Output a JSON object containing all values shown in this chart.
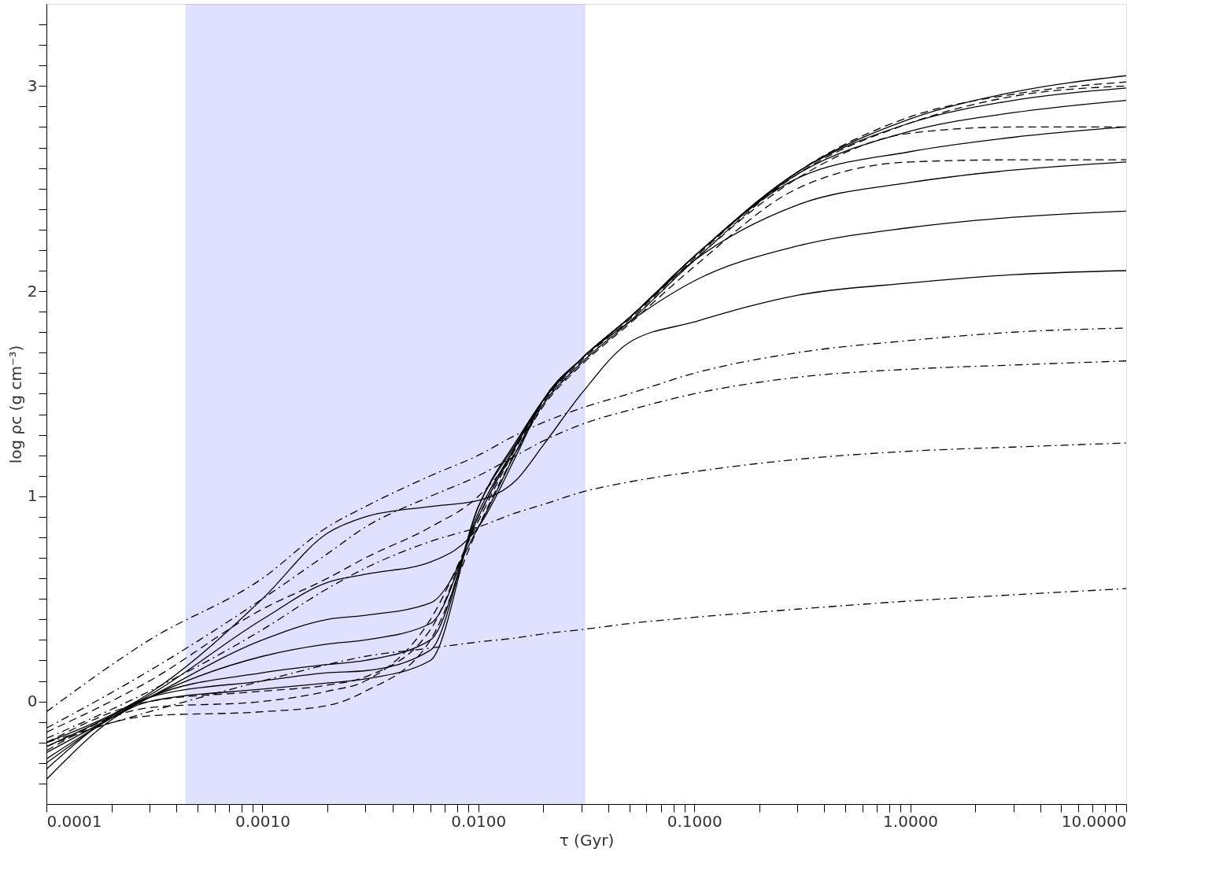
{
  "chart_data": {
    "type": "line",
    "xlabel": "τ (Gyr)",
    "ylabel": "log ρc (g cm⁻³)",
    "log": "x",
    "grid": false,
    "marker": "none",
    "x": [
      0.0001,
      0.0003,
      0.001,
      0.002,
      0.003,
      0.006,
      0.01,
      0.015,
      0.02,
      0.03,
      0.05,
      0.1,
      0.3,
      1,
      3,
      10
    ],
    "xlim": [
      0.0001,
      10
    ],
    "ylim": [
      -0.5,
      3.4
    ],
    "xticks": [
      {
        "value": 0.0001,
        "label": "0.0001"
      },
      {
        "value": 0.0002,
        "label": null
      },
      {
        "value": 0.0003,
        "label": null
      },
      {
        "value": 0.0004,
        "label": null
      },
      {
        "value": 0.0005,
        "label": null
      },
      {
        "value": 0.0006,
        "label": null
      },
      {
        "value": 0.0007,
        "label": null
      },
      {
        "value": 0.0008,
        "label": null
      },
      {
        "value": 0.0009,
        "label": null
      },
      {
        "value": 0.001,
        "label": "0.0010"
      },
      {
        "value": 0.002,
        "label": null
      },
      {
        "value": 0.003,
        "label": null
      },
      {
        "value": 0.004,
        "label": null
      },
      {
        "value": 0.005,
        "label": null
      },
      {
        "value": 0.006,
        "label": null
      },
      {
        "value": 0.007,
        "label": null
      },
      {
        "value": 0.008,
        "label": null
      },
      {
        "value": 0.009,
        "label": null
      },
      {
        "value": 0.01,
        "label": "0.0100"
      },
      {
        "value": 0.02,
        "label": null
      },
      {
        "value": 0.03,
        "label": null
      },
      {
        "value": 0.04,
        "label": null
      },
      {
        "value": 0.05,
        "label": null
      },
      {
        "value": 0.06,
        "label": null
      },
      {
        "value": 0.07,
        "label": null
      },
      {
        "value": 0.08,
        "label": null
      },
      {
        "value": 0.09,
        "label": null
      },
      {
        "value": 0.1,
        "label": "0.1000"
      },
      {
        "value": 0.2,
        "label": null
      },
      {
        "value": 0.3,
        "label": null
      },
      {
        "value": 0.4,
        "label": null
      },
      {
        "value": 0.5,
        "label": null
      },
      {
        "value": 0.6,
        "label": null
      },
      {
        "value": 0.7,
        "label": null
      },
      {
        "value": 0.8,
        "label": null
      },
      {
        "value": 0.9,
        "label": null
      },
      {
        "value": 1,
        "label": "1.0000"
      },
      {
        "value": 2,
        "label": null
      },
      {
        "value": 3,
        "label": null
      },
      {
        "value": 4,
        "label": null
      },
      {
        "value": 5,
        "label": null
      },
      {
        "value": 6,
        "label": null
      },
      {
        "value": 7,
        "label": null
      },
      {
        "value": 8,
        "label": null
      },
      {
        "value": 9,
        "label": null
      },
      {
        "value": 10,
        "label": "10.0000"
      }
    ],
    "yticks": [
      {
        "value": -0.4,
        "label": null
      },
      {
        "value": -0.3,
        "label": null
      },
      {
        "value": -0.2,
        "label": null
      },
      {
        "value": -0.1,
        "label": null
      },
      0,
      {
        "value": 0.1,
        "label": null
      },
      {
        "value": 0.2,
        "label": null
      },
      {
        "value": 0.3,
        "label": null
      },
      {
        "value": 0.4,
        "label": null
      },
      {
        "value": 0.5,
        "label": null
      },
      {
        "value": 0.6,
        "label": null
      },
      {
        "value": 0.7,
        "label": null
      },
      {
        "value": 0.8,
        "label": null
      },
      {
        "value": 0.9,
        "label": null
      },
      1,
      {
        "value": 1.1,
        "label": null
      },
      {
        "value": 1.2,
        "label": null
      },
      {
        "value": 1.3,
        "label": null
      },
      {
        "value": 1.4,
        "label": null
      },
      {
        "value": 1.5,
        "label": null
      },
      {
        "value": 1.6,
        "label": null
      },
      {
        "value": 1.7,
        "label": null
      },
      {
        "value": 1.8,
        "label": null
      },
      {
        "value": 1.9,
        "label": null
      },
      2,
      {
        "value": 2.1,
        "label": null
      },
      {
        "value": 2.2,
        "label": null
      },
      {
        "value": 2.3,
        "label": null
      },
      {
        "value": 2.4,
        "label": null
      },
      {
        "value": 2.5,
        "label": null
      },
      {
        "value": 2.6,
        "label": null
      },
      {
        "value": 2.7,
        "label": null
      },
      {
        "value": 2.8,
        "label": null
      },
      {
        "value": 2.9,
        "label": null
      },
      3,
      {
        "value": 3.1,
        "label": null
      },
      {
        "value": 3.2,
        "label": null
      },
      {
        "value": 3.3,
        "label": null
      }
    ],
    "bands": [
      {
        "axis": "x",
        "from": 0.00044,
        "to": 0.0313,
        "color": "#0000ff"
      }
    ],
    "series": [
      {
        "color": "#000000",
        "line_style": "solid",
        "values": [
          -0.38,
          0.0,
          0.06,
          0.09,
          0.11,
          0.2,
          0.95,
          1.27,
          1.47,
          1.67,
          1.87,
          2.17,
          2.58,
          2.84,
          2.97,
          3.05
        ]
      },
      {
        "color": "#000000",
        "line_style": "solid",
        "values": [
          -0.33,
          0.02,
          0.1,
          0.14,
          0.15,
          0.25,
          0.95,
          1.26,
          1.47,
          1.67,
          1.87,
          2.17,
          2.58,
          2.82,
          2.93,
          2.99
        ]
      },
      {
        "color": "#000000",
        "line_style": "solid",
        "values": [
          -0.3,
          0.02,
          0.14,
          0.18,
          0.2,
          0.3,
          0.92,
          1.25,
          1.47,
          1.67,
          1.87,
          2.17,
          2.57,
          2.78,
          2.87,
          2.93
        ]
      },
      {
        "color": "#000000",
        "line_style": "solid",
        "values": [
          -0.28,
          0.02,
          0.22,
          0.28,
          0.3,
          0.38,
          0.9,
          1.25,
          1.47,
          1.67,
          1.87,
          2.17,
          2.55,
          2.68,
          2.75,
          2.8
        ]
      },
      {
        "color": "#000000",
        "line_style": "solid",
        "values": [
          -0.25,
          0.02,
          0.3,
          0.4,
          0.42,
          0.48,
          0.85,
          1.22,
          1.47,
          1.67,
          1.87,
          2.15,
          2.42,
          2.53,
          2.59,
          2.63
        ]
      },
      {
        "color": "#000000",
        "line_style": "solid",
        "values": [
          -0.22,
          0.03,
          0.4,
          0.58,
          0.62,
          0.68,
          0.85,
          1.2,
          1.47,
          1.67,
          1.85,
          2.05,
          2.22,
          2.31,
          2.36,
          2.39
        ]
      },
      {
        "color": "#000000",
        "line_style": "solid",
        "values": [
          -0.2,
          0.04,
          0.5,
          0.82,
          0.9,
          0.95,
          0.98,
          1.08,
          1.25,
          1.5,
          1.75,
          1.85,
          1.98,
          2.04,
          2.08,
          2.1
        ]
      },
      {
        "color": "#000000",
        "line_style": "dashed",
        "values": [
          -0.2,
          0.0,
          0.05,
          0.08,
          0.12,
          0.35,
          0.9,
          1.25,
          1.46,
          1.66,
          1.86,
          2.16,
          2.58,
          2.85,
          2.96,
          3.02
        ]
      },
      {
        "color": "#000000",
        "line_style": "dashed",
        "values": [
          -0.24,
          -0.03,
          0.0,
          0.05,
          0.1,
          0.4,
          0.88,
          1.24,
          1.45,
          1.65,
          1.85,
          2.15,
          2.55,
          2.77,
          2.8,
          2.8
        ]
      },
      {
        "color": "#000000",
        "line_style": "dashed",
        "values": [
          -0.22,
          -0.07,
          -0.05,
          -0.02,
          0.05,
          0.3,
          0.85,
          1.22,
          1.44,
          1.64,
          1.84,
          2.12,
          2.5,
          2.63,
          2.64,
          2.64
        ]
      },
      {
        "color": "#000000",
        "line_style": "dashed",
        "values": [
          -0.15,
          0.1,
          0.45,
          0.6,
          0.7,
          0.85,
          1.0,
          1.22,
          1.45,
          1.65,
          1.85,
          2.15,
          2.57,
          2.82,
          2.95,
          3.0
        ]
      },
      {
        "color": "#000000",
        "line_style": "dashdot",
        "values": [
          -0.05,
          0.3,
          0.6,
          0.85,
          0.95,
          1.1,
          1.2,
          1.3,
          1.36,
          1.43,
          1.5,
          1.6,
          1.7,
          1.76,
          1.8,
          1.82
        ]
      },
      {
        "color": "#000000",
        "line_style": "dashdot",
        "values": [
          -0.13,
          0.15,
          0.5,
          0.72,
          0.85,
          1.0,
          1.1,
          1.2,
          1.27,
          1.35,
          1.42,
          1.5,
          1.58,
          1.62,
          1.64,
          1.66
        ]
      },
      {
        "color": "#000000",
        "line_style": "dashdot",
        "values": [
          -0.18,
          0.05,
          0.35,
          0.55,
          0.65,
          0.78,
          0.85,
          0.92,
          0.96,
          1.02,
          1.07,
          1.12,
          1.18,
          1.22,
          1.24,
          1.26
        ]
      },
      {
        "color": "#000000",
        "line_style": "dashdot",
        "values": [
          -0.2,
          -0.05,
          0.1,
          0.18,
          0.22,
          0.26,
          0.29,
          0.31,
          0.33,
          0.35,
          0.38,
          0.41,
          0.45,
          0.49,
          0.52,
          0.55
        ]
      }
    ]
  }
}
